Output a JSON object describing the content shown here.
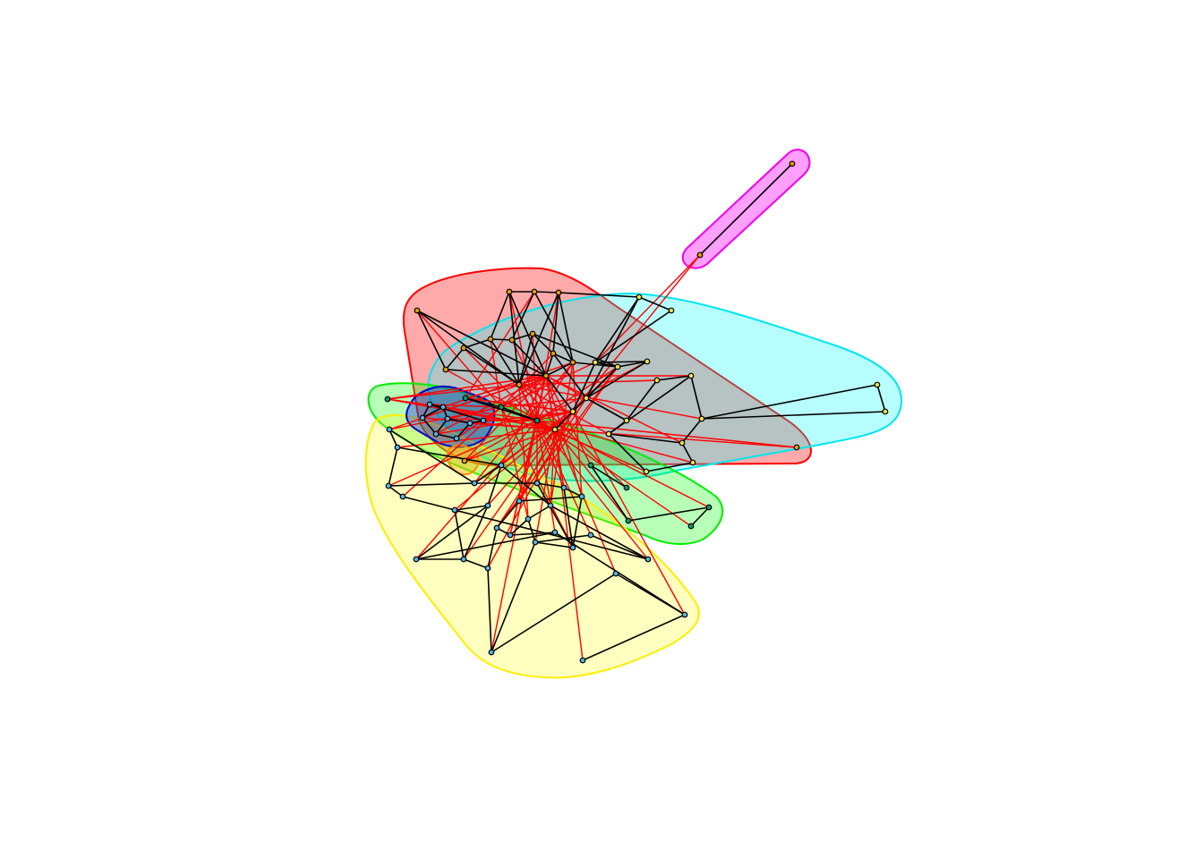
{
  "figure": {
    "type": "network-community-plot",
    "colors": {
      "intra_edge": "#000000",
      "inter_edge": "#ff0000",
      "node_stroke": "#000000"
    },
    "communities": [
      {
        "id": "red",
        "fill": "#ff000055",
        "stroke": "#ff0000",
        "node_color": "#e69f00"
      },
      {
        "id": "cyan",
        "fill": "#00ffff48",
        "stroke": "#00e5ee",
        "node_color": "#f0e442"
      },
      {
        "id": "green",
        "fill": "#00ff0048",
        "stroke": "#00ee00",
        "node_color": "#009e73"
      },
      {
        "id": "blue",
        "fill": "#0000ff55",
        "stroke": "#0000cd",
        "node_color": "#56b4e9"
      },
      {
        "id": "yellow",
        "fill": "#ffff0040",
        "stroke": "#ffee00",
        "node_color": "#56b4e9"
      },
      {
        "id": "magenta",
        "fill": "#ff00ff60",
        "stroke": "#ee00ee",
        "node_color": "#e69f00"
      },
      {
        "id": "orange",
        "fill": "#ffa50060",
        "stroke": "#ff8c00",
        "node_color": "#e69f00"
      }
    ]
  }
}
